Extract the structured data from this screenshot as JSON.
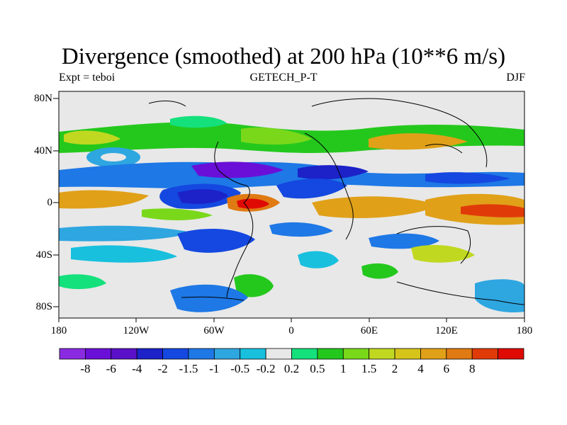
{
  "map": {
    "title": "Divergence (smoothed) at 200 hPa (10**6 m/s)",
    "left_label": "Expt = teboi",
    "center_label": "GETECH_P-T",
    "right_label": "DJF",
    "lat_ticks": [
      "80N",
      "40N",
      "0",
      "40S",
      "80S"
    ],
    "lon_ticks": [
      "180",
      "120W",
      "60W",
      "0",
      "60E",
      "120E",
      "180"
    ]
  },
  "colorbar": {
    "colors": [
      "#8a2be2",
      "#6a0fd8",
      "#5a10c8",
      "#1c22c8",
      "#1448e0",
      "#1e78e6",
      "#2ea6e0",
      "#18c0de",
      "#e8e8e8",
      "#14e07c",
      "#24c81c",
      "#7ad81a",
      "#c0d820",
      "#d6c41a",
      "#e0a018",
      "#e07a12",
      "#e03a08",
      "#e00a04"
    ],
    "labels": [
      "-8",
      "-6",
      "-4",
      "-2",
      "-1.5",
      "-1",
      "-0.5",
      "-0.2",
      "0.2",
      "0.5",
      "1",
      "1.5",
      "2",
      "4",
      "6",
      "8"
    ]
  }
}
